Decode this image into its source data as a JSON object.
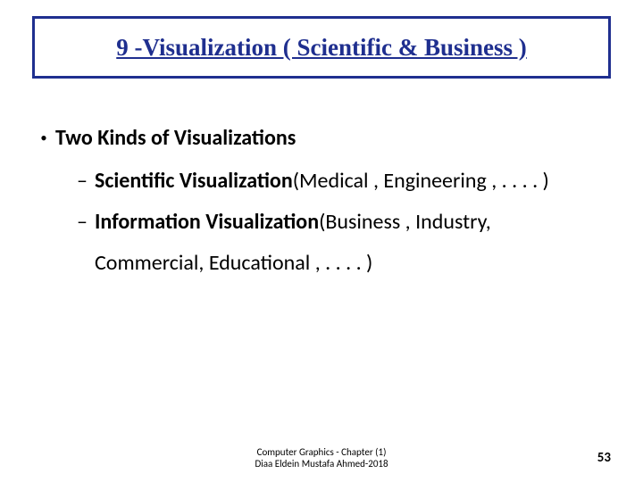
{
  "title": "9 -Visualization ( Scientific & Business )",
  "heading": {
    "bullet": "•",
    "text": "Two Kinds of Visualizations"
  },
  "items": [
    {
      "dash": "–",
      "bold": "Scientific Visualization",
      "rest": "(Medical , Engineering , . . . . )"
    },
    {
      "dash": "–",
      "bold": "Information Visualization",
      "rest": "(Business , Industry,",
      "cont": "Commercial, Educational , . . . . )"
    }
  ],
  "footer": {
    "line1": "Computer Graphics - Chapter (1)",
    "line2": "Diaa Eldein Mustafa Ahmed-2018"
  },
  "page": "53",
  "colors": {
    "title_border": "#1f2f8f",
    "title_text": "#1f2f8f",
    "body_text": "#000000",
    "background": "#ffffff"
  }
}
